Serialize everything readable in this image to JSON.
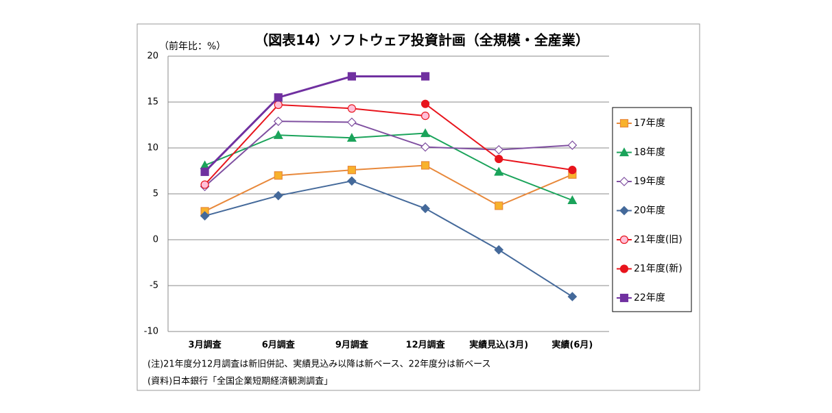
{
  "chart_data": {
    "type": "line",
    "title": "（図表14）ソフトウェア投資計画（全規模・全産業）",
    "y_label": "（前年比：%）",
    "categories": [
      "3月調査",
      "6月調査",
      "9月調査",
      "12月調査",
      "実績見込(3月)",
      "実績(6月)"
    ],
    "series": [
      {
        "name": "17年度",
        "color": "#e8883a",
        "marker": "square",
        "marker_fill": "#f8b22c",
        "values": [
          3.1,
          7.0,
          7.6,
          8.1,
          3.7,
          7.1
        ]
      },
      {
        "name": "18年度",
        "color": "#1aa35a",
        "marker": "triangle",
        "marker_fill": "#1aa35a",
        "values": [
          8.1,
          11.4,
          11.1,
          11.6,
          7.4,
          4.3
        ]
      },
      {
        "name": "19年度",
        "color": "#7f4fa0",
        "marker": "diamond",
        "marker_fill": "#ffffff",
        "values": [
          5.8,
          12.9,
          12.8,
          10.1,
          9.8,
          10.3
        ]
      },
      {
        "name": "20年度",
        "color": "#44699a",
        "marker": "diamond",
        "marker_fill": "#44699a",
        "values": [
          2.6,
          4.8,
          6.4,
          3.4,
          -1.1,
          -6.2
        ]
      },
      {
        "name": "21年度(旧)",
        "color": "#e8141c",
        "marker": "circle",
        "marker_fill": "#ffc0d8",
        "values": [
          6.0,
          14.7,
          14.3,
          13.5,
          null,
          null
        ]
      },
      {
        "name": "21年度(新)",
        "color": "#e8141c",
        "marker": "circle",
        "marker_fill": "#e8141c",
        "values": [
          null,
          null,
          null,
          14.8,
          8.8,
          7.6
        ]
      },
      {
        "name": "22年度",
        "color": "#7030a0",
        "marker": "square",
        "marker_fill": "#7030a0",
        "values": [
          7.4,
          15.5,
          17.8,
          17.8,
          null,
          null
        ]
      }
    ],
    "ylim": [
      -10,
      20
    ],
    "yticks": [
      -10,
      -5,
      0,
      5,
      10,
      15,
      20
    ],
    "grid": true,
    "negative_tick_color": "#e00000",
    "legend": "right",
    "notes": [
      "(注)21年度分12月調査は新旧併記、実績見込み以降は新ベース、22年度分は新ベース",
      "(資料)日本銀行「全国企業短期経済観測調査」"
    ]
  }
}
